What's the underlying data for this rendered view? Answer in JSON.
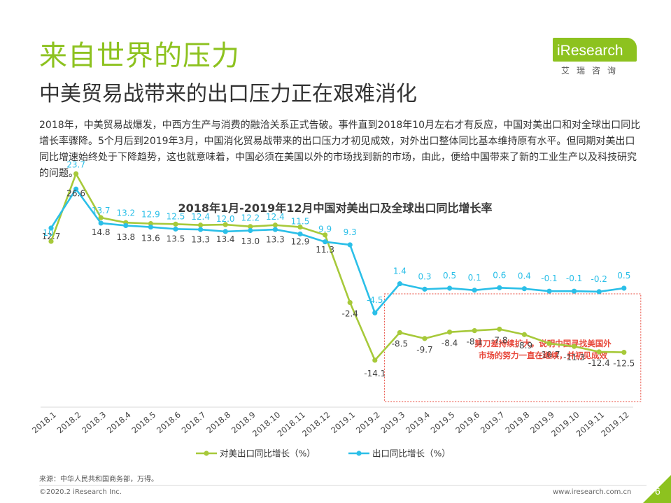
{
  "page": {
    "title": "来自世界的压力",
    "subtitle": "中美贸易战带来的出口压力正在艰难消化",
    "intro": "2018年，中美贸易战爆发，中西方生产与消费的融洽关系正式告破。事件直到2018年10月左右才有反应，中国对美出口和对全球出口同比增长率骤降。5个月后到2019年3月，中国消化贸易战带来的出口压力才初见成效，对外出口整体同比基本维持原有水平。但同期对美出口同比增速始终处于下降趋势，这也就意味着，中国必须在美国以外的市场找到新的市场，由此，便给中国带来了新的工业生产以及科技研究的问题。",
    "logo_text": "iResearch",
    "logo_cn": "艾瑞咨询",
    "source": "来源：中华人民共和国商务部，万得。",
    "copyright": "©2020.2 iResearch Inc.",
    "website": "www.iresearch.com.cn",
    "page_number": "6"
  },
  "colors": {
    "brand_green": "#8dc21f",
    "series_us": "#a7c93a",
    "series_global": "#2bbfe8",
    "annotation_red": "#e8473a"
  },
  "chart_data": {
    "type": "line",
    "title": "2018年1月-2019年12月中国对美出口及全球出口同比增长率",
    "categories": [
      "2018.1",
      "2018.2",
      "2018.3",
      "2018.4",
      "2018.5",
      "2018.6",
      "2018.7",
      "2018.8",
      "2018.9",
      "2018.10",
      "2018.11",
      "2018.12",
      "2019.1",
      "2019.2",
      "2019.3",
      "2019.4",
      "2019.5",
      "2019.6",
      "2019.7",
      "2019.8",
      "2019.9",
      "2019.10",
      "2019.11",
      "2019.12"
    ],
    "series": [
      {
        "name": "对美出口同比增长（%）",
        "color": "#a7c93a",
        "values": [
          10.0,
          23.7,
          14.8,
          13.8,
          13.6,
          13.5,
          13.3,
          13.4,
          13.0,
          13.3,
          12.9,
          11.3,
          -2.4,
          -14.1,
          -8.5,
          -9.7,
          -8.4,
          -8.1,
          -7.8,
          -8.9,
          -10.7,
          -11.3,
          -12.4,
          -12.5
        ],
        "labels": [
          "",
          "23.7",
          "14.8",
          "13.8",
          "13.6",
          "13.5",
          "13.3",
          "13.4",
          "13.0",
          "13.3",
          "12.9",
          "11.3",
          "-2.4",
          "-14.1",
          "-8.5",
          "-9.7",
          "-8.4",
          "-8.1",
          "-7.8",
          "-8.9",
          "-10.7",
          "-11.3",
          "-12.4",
          "-12.5"
        ]
      },
      {
        "name": "出口同比增长（%）",
        "color": "#2bbfe8",
        "values": [
          12.7,
          20.6,
          13.7,
          13.2,
          12.9,
          12.5,
          12.4,
          12.0,
          12.2,
          12.4,
          11.5,
          9.9,
          9.3,
          -4.5,
          1.4,
          0.3,
          0.5,
          0.1,
          0.6,
          0.4,
          -0.1,
          -0.1,
          -0.2,
          0.5
        ],
        "labels": [
          "12.7",
          "20.6",
          "13.7",
          "13.2",
          "12.9",
          "12.5",
          "12.4",
          "12.0",
          "12.2",
          "12.4",
          "11.5",
          "9.9",
          "9.3",
          "-4.5",
          "1.4",
          "0.3",
          "0.5",
          "0.1",
          "0.6",
          "0.4",
          "-0.1",
          "-0.1",
          "-0.2",
          "0.5"
        ]
      }
    ],
    "extra_labels": [
      "10",
      "26.6"
    ],
    "annotation": {
      "lines": [
        "剪刀差持续扩大，说明中国寻找美国外",
        "市场的努力一直在继续，并初见成效"
      ],
      "range_start": "2019.3",
      "range_end": "2019.12"
    },
    "legend_position": "bottom",
    "grid": false
  }
}
